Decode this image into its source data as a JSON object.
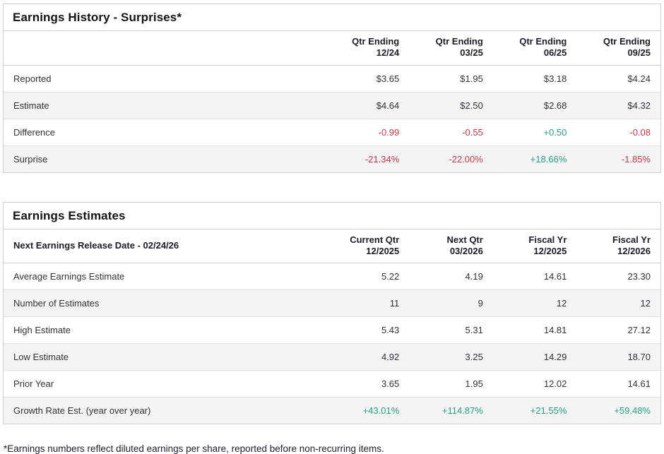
{
  "page": {
    "footnote": "*Earnings numbers reflect diluted earnings per share, reported before non-recurring items."
  },
  "colors": {
    "positive": "#2f9d80",
    "negative": "#c03a4a"
  },
  "tables": [
    {
      "id": "earnings-history",
      "title": "Earnings History - Surprises*",
      "corner_label": "",
      "columns": [
        {
          "line1": "Qtr Ending",
          "line2": "12/24"
        },
        {
          "line1": "Qtr Ending",
          "line2": "03/25"
        },
        {
          "line1": "Qtr Ending",
          "line2": "06/25"
        },
        {
          "line1": "Qtr Ending",
          "line2": "09/25"
        }
      ],
      "rows": [
        {
          "label": "Reported",
          "values": [
            "$3.65",
            "$1.95",
            "$3.18",
            "$4.24"
          ],
          "colored": false
        },
        {
          "label": "Estimate",
          "values": [
            "$4.64",
            "$2.50",
            "$2.68",
            "$4.32"
          ],
          "colored": false
        },
        {
          "label": "Difference",
          "values": [
            "-0.99",
            "-0.55",
            "+0.50",
            "-0.08"
          ],
          "colored": true
        },
        {
          "label": "Surprise",
          "values": [
            "-21.34%",
            "-22.00%",
            "+18.66%",
            "-1.85%"
          ],
          "colored": true
        }
      ]
    },
    {
      "id": "earnings-estimates",
      "title": "Earnings Estimates",
      "corner_label": "Next Earnings Release Date - 02/24/26",
      "columns": [
        {
          "line1": "Current Qtr",
          "line2": "12/2025"
        },
        {
          "line1": "Next Qtr",
          "line2": "03/2026"
        },
        {
          "line1": "Fiscal Yr",
          "line2": "12/2025"
        },
        {
          "line1": "Fiscal Yr",
          "line2": "12/2026"
        }
      ],
      "rows": [
        {
          "label": "Average Earnings Estimate",
          "values": [
            "5.22",
            "4.19",
            "14.61",
            "23.30"
          ],
          "colored": false
        },
        {
          "label": "Number of Estimates",
          "values": [
            "11",
            "9",
            "12",
            "12"
          ],
          "colored": false
        },
        {
          "label": "High Estimate",
          "values": [
            "5.43",
            "5.31",
            "14.81",
            "27.12"
          ],
          "colored": false
        },
        {
          "label": "Low Estimate",
          "values": [
            "4.92",
            "3.25",
            "14.29",
            "18.70"
          ],
          "colored": false
        },
        {
          "label": "Prior Year",
          "values": [
            "3.65",
            "1.95",
            "12.02",
            "14.61"
          ],
          "colored": false
        },
        {
          "label": "Growth Rate Est. (year over year)",
          "values": [
            "+43.01%",
            "+114.87%",
            "+21.55%",
            "+59.48%"
          ],
          "colored": true
        }
      ]
    }
  ]
}
